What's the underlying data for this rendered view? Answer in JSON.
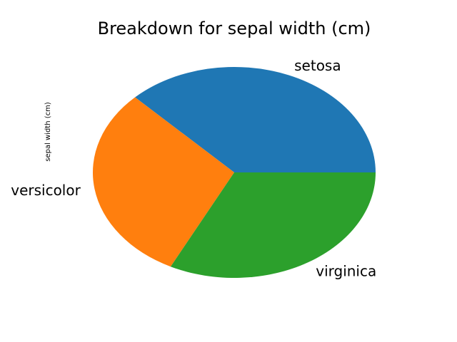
{
  "chart_data": {
    "type": "pie",
    "title": "Breakdown for sepal width (cm)",
    "ylabel": "sepal width (cm)",
    "labels": [
      "setosa",
      "versicolor",
      "virginica"
    ],
    "values": [
      171.4,
      138.5,
      148.7
    ],
    "colors": [
      "#1f77b4",
      "#ff7f0e",
      "#2ca02c"
    ],
    "start_angle_deg": 0,
    "direction": "counterclockwise"
  }
}
